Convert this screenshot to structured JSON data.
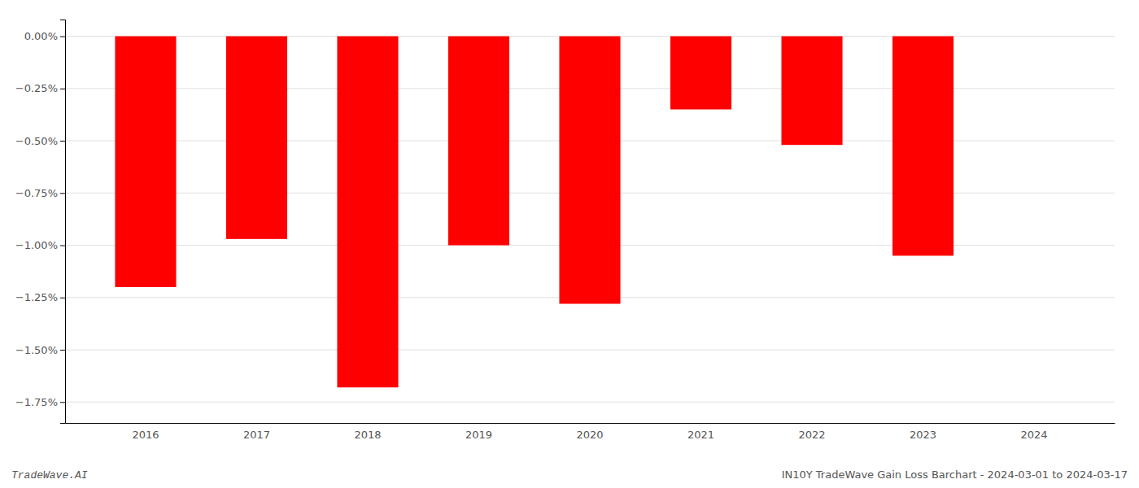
{
  "chart_data": {
    "type": "bar",
    "categories": [
      "2016",
      "2017",
      "2018",
      "2019",
      "2020",
      "2021",
      "2022",
      "2023",
      "2024"
    ],
    "values": [
      -0.012,
      -0.0097,
      -0.0168,
      -0.01,
      -0.0128,
      -0.0035,
      -0.0052,
      -0.0105,
      null
    ],
    "color": "#ff0000",
    "ylim": [
      -0.0185,
      0.0008
    ],
    "yticks": [
      {
        "value": 0.0,
        "label": "0.00%"
      },
      {
        "value": -0.0025,
        "label": "−0.25%"
      },
      {
        "value": -0.005,
        "label": "−0.50%"
      },
      {
        "value": -0.0075,
        "label": "−0.75%"
      },
      {
        "value": -0.01,
        "label": "−1.00%"
      },
      {
        "value": -0.0125,
        "label": "−1.25%"
      },
      {
        "value": -0.015,
        "label": "−1.50%"
      },
      {
        "value": -0.0175,
        "label": "−1.75%"
      }
    ],
    "grid": true,
    "annotations": [
      "TradeWave.AI",
      "IN10Y TradeWave Gain Loss Barchart - 2024-03-01 to 2024-03-17"
    ]
  }
}
